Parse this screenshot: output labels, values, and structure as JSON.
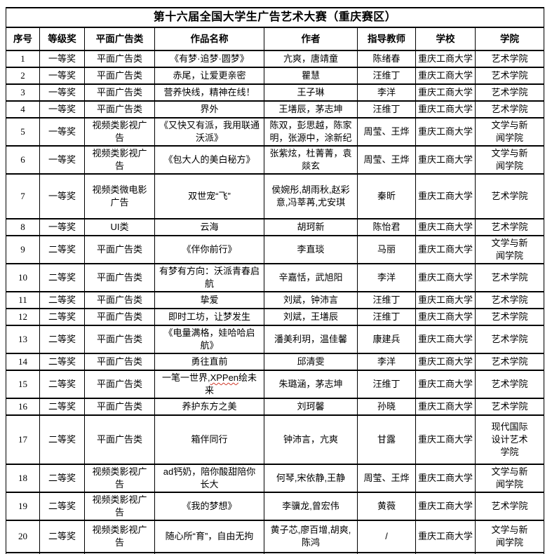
{
  "title": "第十六届全国大学生广告艺术大赛（重庆赛区）",
  "columns": [
    "序号",
    "等级奖",
    "平面广告类",
    "作品名称",
    "作者",
    "指导教师",
    "学校",
    "学院"
  ],
  "misspelled_word": "XPPen",
  "squiggle_color": "#d03a2b",
  "text_color": "#000000",
  "border_color": "#000000",
  "rows": [
    {
      "no": "1",
      "award": "一等奖",
      "category": "平面广告类",
      "work": "《有梦·追梦·圆梦》",
      "authors": "亢爽，唐靖童",
      "advisor": "陈绪春",
      "school": "重庆工商大学",
      "college": "艺术学院"
    },
    {
      "no": "2",
      "award": "一等奖",
      "category": "平面广告类",
      "work": "赤尾，让爱更亲密",
      "authors": "瞿慧",
      "advisor": "汪维丁",
      "school": "重庆工商大学",
      "college": "艺术学院"
    },
    {
      "no": "3",
      "award": "一等奖",
      "category": "平面广告类",
      "work": "营养快线，精神在线！",
      "authors": "王子琳",
      "advisor": "李洋",
      "school": "重庆工商大学",
      "college": "艺术学院"
    },
    {
      "no": "4",
      "award": "一等奖",
      "category": "平面广告类",
      "work": "界外",
      "authors": "王墡辰，茅志坤",
      "advisor": "汪维丁",
      "school": "重庆工商大学",
      "college": "艺术学院"
    },
    {
      "no": "5",
      "award": "一等奖",
      "category": "视频类影视广告",
      "work": "《又快又有派，我用联通沃派》",
      "authors": "陈双，彭思越，陈家明，张源中，涂新纪",
      "advisor": "周莹、王烨",
      "school": "重庆工商大学",
      "college": "文学与新闻学院"
    },
    {
      "no": "6",
      "award": "一等奖",
      "category": "视频类影视广告",
      "work": "《包大人的美白秘方》",
      "authors": "张紫炫，杜菁菁，袁燚玄",
      "advisor": "周莹、王烨",
      "school": "重庆工商大学",
      "college": "文学与新闻学院"
    },
    {
      "no": "7",
      "award": "一等奖",
      "category": "视频类微电影广告",
      "work": "双世宠“飞”",
      "authors": "侯婉彤,胡雨秋,赵彩意,冯莘苒,尤安琪",
      "advisor": "秦昕",
      "school": "重庆工商大学",
      "college": "艺术学院"
    },
    {
      "no": "8",
      "award": "一等奖",
      "category": "UI类",
      "work": "云海",
      "authors": "胡珂新",
      "advisor": "陈怡君",
      "school": "重庆工商大学",
      "college": "艺术学院"
    },
    {
      "no": "9",
      "award": "二等奖",
      "category": "平面广告类",
      "work": "《伴你前行》",
      "authors": "李直琰",
      "advisor": "马丽",
      "school": "重庆工商大学",
      "college": "文学与新闻学院"
    },
    {
      "no": "10",
      "award": "二等奖",
      "category": "平面广告类",
      "work": "有梦有方向：沃派青春启航",
      "authors": "辛嘉恬，武旭阳",
      "advisor": "李洋",
      "school": "重庆工商大学",
      "college": "艺术学院"
    },
    {
      "no": "11",
      "award": "二等奖",
      "category": "平面广告类",
      "work": "挚爱",
      "authors": "刘斌，钟沛言",
      "advisor": "汪维丁",
      "school": "重庆工商大学",
      "college": "艺术学院"
    },
    {
      "no": "12",
      "award": "二等奖",
      "category": "平面广告类",
      "work": "即时工坊，让梦发生",
      "authors": "刘斌，王墡辰",
      "advisor": "汪维丁",
      "school": "重庆工商大学",
      "college": "艺术学院"
    },
    {
      "no": "13",
      "award": "二等奖",
      "category": "平面广告类",
      "work": "《电量满格，娃哈哈启航》",
      "authors": "潘美利玥，温佳馨",
      "advisor": "康建兵",
      "school": "重庆工商大学",
      "college": "艺术学院"
    },
    {
      "no": "14",
      "award": "二等奖",
      "category": "平面广告类",
      "work": "勇往直前",
      "authors": "邱清雯",
      "advisor": "李洋",
      "school": "重庆工商大学",
      "college": "艺术学院"
    },
    {
      "no": "15",
      "award": "二等奖",
      "category": "平面广告类",
      "work": "一笔一世界,XPPen绘未来",
      "authors": "朱璐涵，茅志坤",
      "advisor": "汪维丁",
      "school": "重庆工商大学",
      "college": "艺术学院"
    },
    {
      "no": "16",
      "award": "二等奖",
      "category": "平面广告类",
      "work": "养护东方之美",
      "authors": "刘珂馨",
      "advisor": "孙晓",
      "school": "重庆工商大学",
      "college": "艺术学院"
    },
    {
      "no": "17",
      "award": "二等奖",
      "category": "平面广告类",
      "work": "箱伴同行",
      "authors": "钟沛言，亢爽",
      "advisor": "甘露",
      "school": "重庆工商大学",
      "college": "现代国际设计艺术学院"
    },
    {
      "no": "18",
      "award": "二等奖",
      "category": "视频类影视广告",
      "work": "ad钙奶，陪你酸甜陪你长大",
      "authors": "何琴,宋依静,王静",
      "advisor": "周莹、王烨",
      "school": "重庆工商大学",
      "college": "文学与新闻学院"
    },
    {
      "no": "19",
      "award": "二等奖",
      "category": "视频类影视广告",
      "work": "《我的梦想》",
      "authors": "李骥龙,曾宏伟",
      "advisor": "黄薇",
      "school": "重庆工商大学",
      "college": "艺术学院"
    },
    {
      "no": "20",
      "award": "二等奖",
      "category": "视频类影视广告",
      "work": "随心所“育”，自由无拘",
      "authors": "黄子芯,廖百增,胡爽,陈鸿",
      "advisor": "/",
      "school": "重庆工商大学",
      "college": "文学与新闻学院"
    }
  ]
}
